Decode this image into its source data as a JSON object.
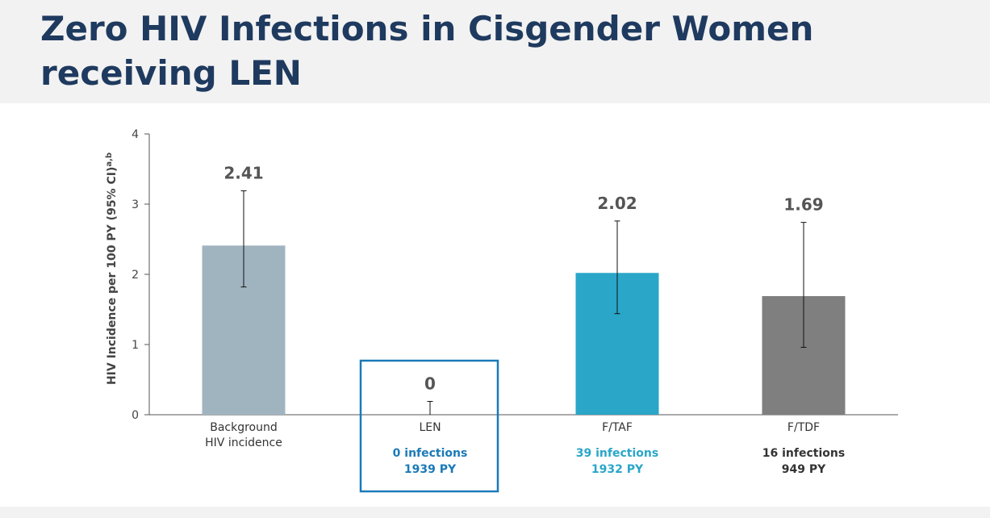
{
  "title": "Zero HIV Infections in Cisgender Women receiving LEN",
  "chart_data": {
    "type": "bar",
    "ylabel": "HIV Incidence per 100 PY (95% CI)",
    "ylabel_superscript": "a,b",
    "ylim": [
      0,
      4
    ],
    "yticks": [
      0,
      1,
      2,
      3,
      4
    ],
    "grid": false,
    "categories": [
      {
        "label_lines": [
          "Background",
          "HIV incidence"
        ],
        "value": 2.41,
        "value_label": "2.41",
        "ci": [
          1.82,
          3.19
        ],
        "color": "#a0b4c0",
        "infections": "",
        "py": "",
        "sub_color": "#333333",
        "highlight": false
      },
      {
        "label_lines": [
          "LEN"
        ],
        "value": 0,
        "value_label": "0",
        "ci": [
          0,
          0.19
        ],
        "color": "#1a7ab8",
        "infections": "0 infections",
        "py": "1939 PY",
        "sub_color": "#1a7ab8",
        "highlight": true
      },
      {
        "label_lines": [
          "F/TAF"
        ],
        "value": 2.02,
        "value_label": "2.02",
        "ci": [
          1.44,
          2.76
        ],
        "color": "#2aa6c8",
        "infections": "39 infections",
        "py": "1932 PY",
        "sub_color": "#2aa6c8",
        "highlight": false
      },
      {
        "label_lines": [
          "F/TDF"
        ],
        "value": 1.69,
        "value_label": "1.69",
        "ci": [
          0.96,
          2.74
        ],
        "color": "#7f7f7f",
        "infections": "16 infections",
        "py": "949 PY",
        "sub_color": "#333333",
        "highlight": false
      }
    ]
  }
}
